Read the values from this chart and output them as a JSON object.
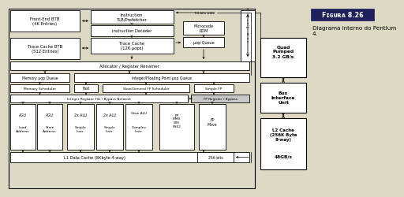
{
  "bg_color": "#ddd9c4",
  "diagram_bg": "#ddd9c4",
  "box_fill": "#ffffff",
  "title_bg": "#1f1f5c",
  "title_text": "FIGURA 8.26",
  "subtitle": "Diagrama interno do Pentium\n4.",
  "title_fg": "#ffffff"
}
